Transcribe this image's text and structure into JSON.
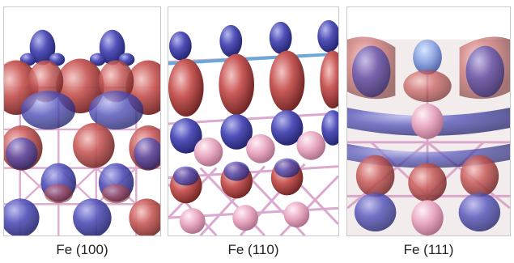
{
  "panels": [
    {
      "caption": "Fe (100)"
    },
    {
      "caption": "Fe (110)"
    },
    {
      "caption": "Fe (111)"
    }
  ],
  "colors": {
    "electron_accumulation": "#c84848",
    "electron_depletion": "#4a4aa8",
    "fe_atom": "#e8a8c0",
    "bond": "#d8a0c8",
    "background": "#ffffff"
  }
}
